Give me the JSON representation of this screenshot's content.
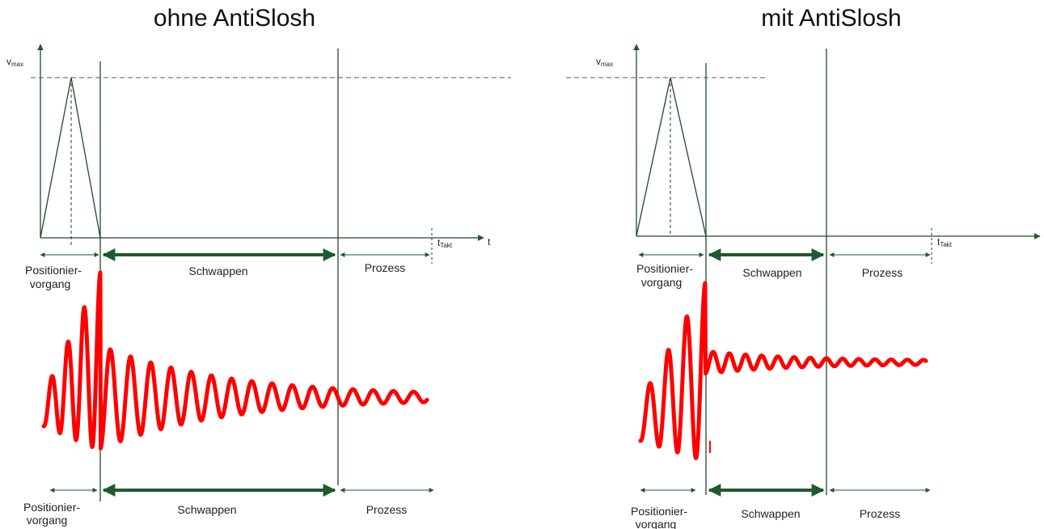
{
  "panels": [
    {
      "title": "ohne AntiSlosh",
      "y_axis_label": "v",
      "y_axis_sub": "max",
      "x_axis_label": "t",
      "takt_label": "t",
      "takt_sub": "Takt",
      "phases_top": [
        "Positionier-",
        "vorgang",
        "Schwappen",
        "Prozess"
      ],
      "phases_bottom": [
        "Positionier-",
        "vorgang",
        "Schwappen",
        "Prozess"
      ]
    },
    {
      "title": "mit AntiSlosh",
      "y_axis_label": "v",
      "y_axis_sub": "max",
      "takt_label": "t",
      "takt_sub": "Takt",
      "phases_top": [
        "Positionier-",
        "vorgang",
        "Schwappen",
        "Prozess"
      ],
      "phases_bottom": [
        "Positionier-",
        "vorgang",
        "Schwappen",
        "Prozess"
      ]
    }
  ],
  "colors": {
    "axis": "#1f4a2a",
    "arrow": "#1f5a2e",
    "wave": "#ff0000",
    "dashed": "#555555",
    "text": "#222222"
  }
}
